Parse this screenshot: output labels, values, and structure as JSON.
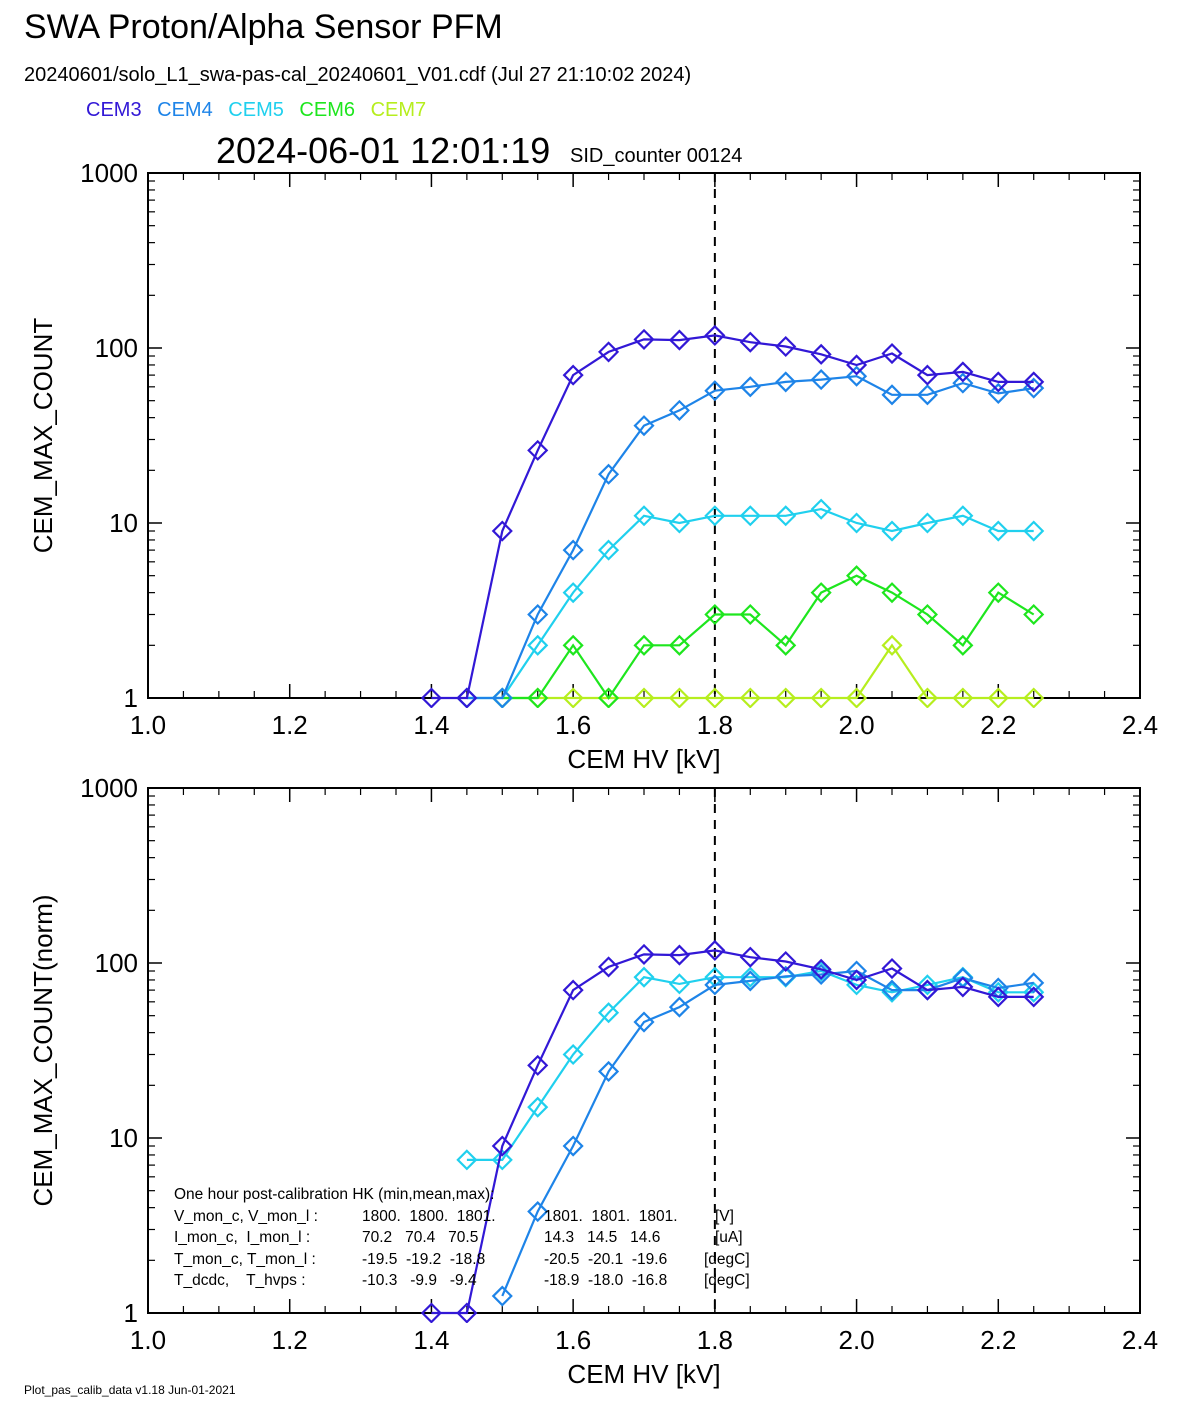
{
  "header": {
    "title": "SWA Proton/Alpha Sensor PFM",
    "subtitle": "20240601/solo_L1_swa-pas-cal_20240601_V01.cdf  (Jul 27 21:10:02 2024)",
    "timestamp": "2024-06-01 12:01:19",
    "sid_counter": "SID_counter 00124"
  },
  "legend": [
    {
      "label": "CEM3",
      "color": "#3218d6"
    },
    {
      "label": "CEM4",
      "color": "#1e84e8"
    },
    {
      "label": "CEM5",
      "color": "#20d0ee"
    },
    {
      "label": "CEM6",
      "color": "#1ee61e"
    },
    {
      "label": "CEM7",
      "color": "#b6ee1e"
    }
  ],
  "footer": "Plot_pas_calib_data v1.18 Jun-01-2021",
  "hk_box": {
    "title": "One hour post-calibration HK (min,mean,max):",
    "rows": [
      {
        "label": "V_mon_c, V_mon_l :",
        "c": "1800.  1800.  1801.",
        "l": "1801.  1801.  1801.",
        "unit": "[V]"
      },
      {
        "label": "I_mon_c,  I_mon_l :",
        "c": "70.2   70.4   70.5",
        "l": "14.3   14.5   14.6",
        "unit": "[uA]"
      },
      {
        "label": "T_mon_c, T_mon_l :",
        "c": "-19.5  -19.2  -18.8",
        "l": "-20.5  -20.1  -19.6",
        "unit": "[degC]"
      },
      {
        "label": "T_dcdc,    T_hvps :",
        "c": "-10.3   -9.9   -9.4",
        "l": "-18.9  -18.0  -16.8",
        "unit": "[degC]"
      }
    ]
  },
  "chart_data": [
    {
      "type": "line",
      "xlabel": "CEM HV [kV]",
      "ylabel": "CEM_MAX_COUNT",
      "xlim": [
        1.0,
        2.4
      ],
      "ylim": [
        1,
        1000
      ],
      "yscale": "log",
      "xticks": [
        "1.0",
        "1.2",
        "1.4",
        "1.6",
        "1.8",
        "2.0",
        "2.2",
        "2.4"
      ],
      "yticks": [
        "1",
        "10",
        "100",
        "1000"
      ],
      "vline_x": 1.8,
      "x": [
        1.4,
        1.45,
        1.5,
        1.55,
        1.6,
        1.65,
        1.7,
        1.75,
        1.8,
        1.85,
        1.9,
        1.95,
        2.0,
        2.05,
        2.1,
        2.15,
        2.2,
        2.25
      ],
      "series": [
        {
          "name": "CEM3",
          "color": "#3218d6",
          "values": [
            1,
            1,
            9,
            26,
            70,
            95,
            112,
            111,
            118,
            108,
            102,
            92,
            80,
            93,
            70,
            73,
            64,
            64
          ]
        },
        {
          "name": "CEM4",
          "color": "#1e84e8",
          "values": [
            null,
            1,
            1,
            3,
            7,
            19,
            36,
            44,
            57,
            60,
            64,
            66,
            69,
            54,
            54,
            63,
            55,
            59
          ]
        },
        {
          "name": "CEM5",
          "color": "#20d0ee",
          "values": [
            null,
            1,
            1,
            2,
            4,
            7,
            11,
            10,
            11,
            11,
            11,
            12,
            10,
            9,
            10,
            11,
            9,
            9
          ]
        },
        {
          "name": "CEM6",
          "color": "#1ee61e",
          "values": [
            null,
            null,
            1,
            1,
            2,
            1,
            2,
            2,
            3,
            3,
            2,
            4,
            5,
            4,
            3,
            2,
            4,
            3
          ]
        },
        {
          "name": "CEM7",
          "color": "#b6ee1e",
          "values": [
            null,
            null,
            1,
            1,
            1,
            1,
            1,
            1,
            1,
            1,
            1,
            1,
            1,
            2,
            1,
            1,
            1,
            1
          ]
        }
      ]
    },
    {
      "type": "line",
      "xlabel": "CEM HV [kV]",
      "ylabel": "CEM_MAX_COUNT(norm)",
      "xlim": [
        1.0,
        2.4
      ],
      "ylim": [
        1,
        1000
      ],
      "yscale": "log",
      "xticks": [
        "1.0",
        "1.2",
        "1.4",
        "1.6",
        "1.8",
        "2.0",
        "2.2",
        "2.4"
      ],
      "yticks": [
        "1",
        "10",
        "100",
        "1000"
      ],
      "vline_x": 1.8,
      "x": [
        1.4,
        1.45,
        1.5,
        1.55,
        1.6,
        1.65,
        1.7,
        1.75,
        1.8,
        1.85,
        1.9,
        1.95,
        2.0,
        2.05,
        2.1,
        2.15,
        2.2,
        2.25
      ],
      "series": [
        {
          "name": "CEM3",
          "color": "#3218d6",
          "values": [
            1,
            1,
            9,
            26,
            70,
            95,
            112,
            111,
            118,
            108,
            102,
            92,
            80,
            93,
            70,
            73,
            64,
            64
          ]
        },
        {
          "name": "CEM4",
          "color": "#1e84e8",
          "values": [
            null,
            null,
            1.25,
            3.8,
            9,
            24,
            46,
            56,
            75,
            79,
            84,
            86,
            90,
            70,
            70,
            82,
            72,
            77
          ]
        },
        {
          "name": "CEM5",
          "color": "#20d0ee",
          "values": [
            null,
            7.5,
            7.5,
            15,
            30,
            52,
            83,
            76,
            83,
            83,
            83,
            90,
            75,
            68,
            75,
            83,
            68,
            68
          ]
        }
      ]
    }
  ]
}
